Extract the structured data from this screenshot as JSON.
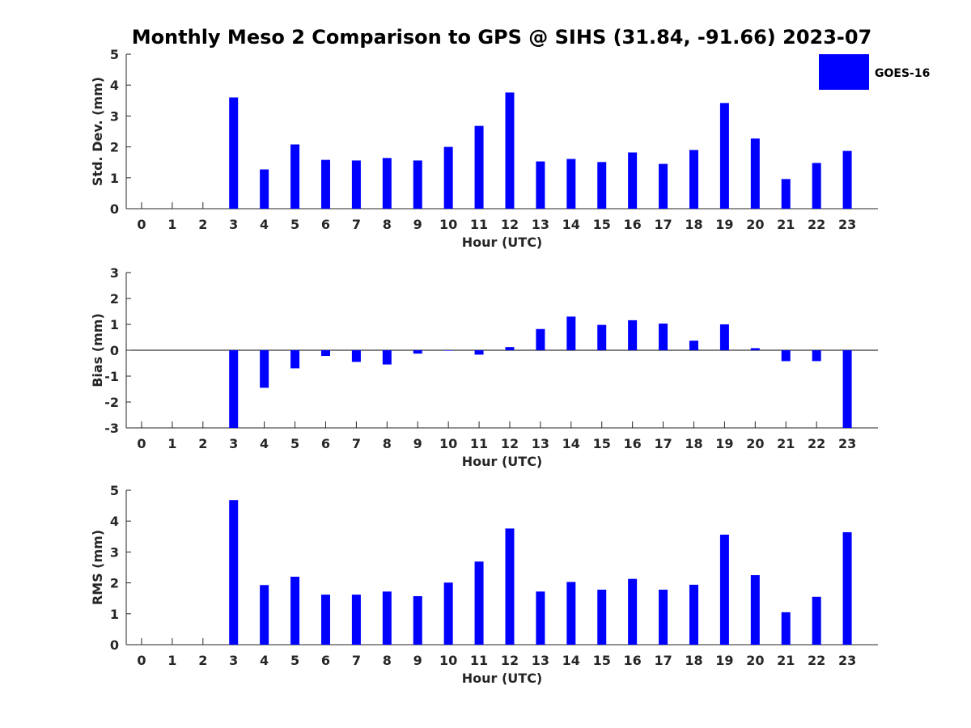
{
  "title": "Monthly Meso 2 Comparison to GPS @ SIHS (31.84, -91.66) 2023-07",
  "legend": {
    "label": "GOES-16",
    "color": "#0000ff",
    "placement": "top-right"
  },
  "chart_data": [
    {
      "type": "bar",
      "id": "stddev",
      "ylabel": "Std. Dev. (mm)",
      "xlabel": "Hour (UTC)",
      "ylim": [
        0,
        5
      ],
      "yticks": [
        0,
        1,
        2,
        3,
        4,
        5
      ],
      "x": [
        0,
        1,
        2,
        3,
        4,
        5,
        6,
        7,
        8,
        9,
        10,
        11,
        12,
        13,
        14,
        15,
        16,
        17,
        18,
        19,
        20,
        21,
        22,
        23
      ],
      "values": [
        null,
        null,
        null,
        3.6,
        1.27,
        2.08,
        1.58,
        1.56,
        1.64,
        1.56,
        2.0,
        2.68,
        3.76,
        1.53,
        1.61,
        1.51,
        1.82,
        1.45,
        1.9,
        3.42,
        2.27,
        0.96,
        1.48,
        1.87
      ]
    },
    {
      "type": "bar",
      "id": "bias",
      "ylabel": "Bias (mm)",
      "xlabel": "Hour (UTC)",
      "ylim": [
        -3,
        3
      ],
      "yticks": [
        -3,
        -2,
        -1,
        0,
        1,
        2,
        3
      ],
      "x": [
        0,
        1,
        2,
        3,
        4,
        5,
        6,
        7,
        8,
        9,
        10,
        11,
        12,
        13,
        14,
        15,
        16,
        17,
        18,
        19,
        20,
        21,
        22,
        23
      ],
      "values": [
        null,
        null,
        null,
        -3.0,
        -1.45,
        -0.7,
        -0.22,
        -0.45,
        -0.55,
        -0.13,
        -0.02,
        -0.17,
        0.12,
        0.82,
        1.3,
        0.98,
        1.16,
        1.03,
        0.37,
        1.0,
        0.08,
        -0.42,
        -0.42,
        -3.0
      ]
    },
    {
      "type": "bar",
      "id": "rms",
      "ylabel": "RMS (mm)",
      "xlabel": "Hour (UTC)",
      "ylim": [
        0,
        5
      ],
      "yticks": [
        0,
        1,
        2,
        3,
        4,
        5
      ],
      "x": [
        0,
        1,
        2,
        3,
        4,
        5,
        6,
        7,
        8,
        9,
        10,
        11,
        12,
        13,
        14,
        15,
        16,
        17,
        18,
        19,
        20,
        21,
        22,
        23
      ],
      "values": [
        null,
        null,
        null,
        4.68,
        1.93,
        2.2,
        1.62,
        1.62,
        1.72,
        1.57,
        2.01,
        2.69,
        3.76,
        1.72,
        2.03,
        1.78,
        2.13,
        1.78,
        1.94,
        3.56,
        2.25,
        1.05,
        1.55,
        3.64
      ]
    }
  ]
}
